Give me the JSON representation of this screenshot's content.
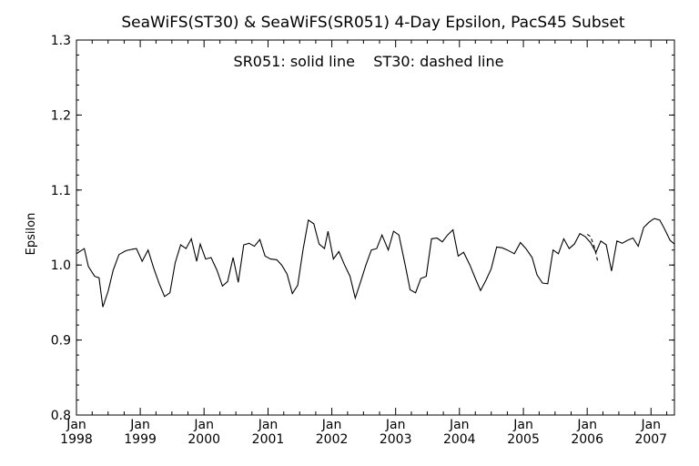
{
  "chart_data": {
    "type": "line",
    "title": "SeaWiFS(ST30) & SeaWiFS(SR051) 4-Day Epsilon, PacS45 Subset",
    "annotation": "SR051: solid line    ST30: dashed line",
    "ylabel": "Epsilon",
    "xlabel": "",
    "xlim": [
      "1998-01-01",
      "2007-05-15"
    ],
    "ylim": [
      0.8,
      1.3
    ],
    "y_ticks": [
      0.8,
      0.9,
      1.0,
      1.1,
      1.2,
      1.3
    ],
    "y_tick_labels": [
      "0.8",
      "0.9",
      "1.0",
      "1.1",
      "1.2",
      "1.3"
    ],
    "x_ticks": [
      {
        "date": "1998-01-01",
        "month": "Jan",
        "year": "1998"
      },
      {
        "date": "1999-01-01",
        "month": "Jan",
        "year": "1999"
      },
      {
        "date": "2000-01-01",
        "month": "Jan",
        "year": "2000"
      },
      {
        "date": "2001-01-01",
        "month": "Jan",
        "year": "2001"
      },
      {
        "date": "2002-01-01",
        "month": "Jan",
        "year": "2002"
      },
      {
        "date": "2003-01-01",
        "month": "Jan",
        "year": "2003"
      },
      {
        "date": "2004-01-01",
        "month": "Jan",
        "year": "2004"
      },
      {
        "date": "2005-01-01",
        "month": "Jan",
        "year": "2005"
      },
      {
        "date": "2006-01-01",
        "month": "Jan",
        "year": "2006"
      },
      {
        "date": "2007-01-01",
        "month": "Jan",
        "year": "2007"
      }
    ],
    "grid": false,
    "series": [
      {
        "name": "SR051",
        "style": "solid",
        "color": "#000000",
        "points": [
          [
            "1997-12-10",
            1.01
          ],
          [
            "1998-01-01",
            1.015
          ],
          [
            "1998-02-15",
            1.022
          ],
          [
            "1998-03-10",
            0.998
          ],
          [
            "1998-04-15",
            0.985
          ],
          [
            "1998-05-10",
            0.983
          ],
          [
            "1998-06-01",
            0.944
          ],
          [
            "1998-07-01",
            0.965
          ],
          [
            "1998-07-30",
            0.993
          ],
          [
            "1998-09-01",
            1.014
          ],
          [
            "1998-10-10",
            1.019
          ],
          [
            "1998-11-15",
            1.021
          ],
          [
            "1998-12-10",
            1.022
          ],
          [
            "1999-01-12",
            1.005
          ],
          [
            "1999-02-15",
            1.02
          ],
          [
            "1999-03-20",
            0.995
          ],
          [
            "1999-04-20",
            0.975
          ],
          [
            "1999-05-20",
            0.958
          ],
          [
            "1999-06-20",
            0.963
          ],
          [
            "1999-07-20",
            1.003
          ],
          [
            "1999-08-20",
            1.027
          ],
          [
            "1999-09-20",
            1.022
          ],
          [
            "1999-10-20",
            1.035
          ],
          [
            "1999-11-20",
            1.005
          ],
          [
            "1999-12-10",
            1.028
          ],
          [
            "2000-01-10",
            1.008
          ],
          [
            "2000-02-10",
            1.01
          ],
          [
            "2000-03-15",
            0.993
          ],
          [
            "2000-04-15",
            0.972
          ],
          [
            "2000-05-15",
            0.978
          ],
          [
            "2000-06-15",
            1.01
          ],
          [
            "2000-07-15",
            0.977
          ],
          [
            "2000-08-15",
            1.027
          ],
          [
            "2000-09-15",
            1.029
          ],
          [
            "2000-10-15",
            1.025
          ],
          [
            "2000-11-15",
            1.034
          ],
          [
            "2000-12-15",
            1.012
          ],
          [
            "2001-01-15",
            1.008
          ],
          [
            "2001-02-20",
            1.007
          ],
          [
            "2001-03-20",
            1.0
          ],
          [
            "2001-04-20",
            0.988
          ],
          [
            "2001-05-20",
            0.962
          ],
          [
            "2001-06-20",
            0.973
          ],
          [
            "2001-07-20",
            1.02
          ],
          [
            "2001-08-20",
            1.06
          ],
          [
            "2001-09-20",
            1.055
          ],
          [
            "2001-10-20",
            1.028
          ],
          [
            "2001-11-20",
            1.022
          ],
          [
            "2001-12-10",
            1.045
          ],
          [
            "2002-01-10",
            1.008
          ],
          [
            "2002-02-10",
            1.018
          ],
          [
            "2002-03-15",
            1.0
          ],
          [
            "2002-04-15",
            0.985
          ],
          [
            "2002-05-15",
            0.956
          ],
          [
            "2002-06-15",
            0.978
          ],
          [
            "2002-07-15",
            1.0
          ],
          [
            "2002-08-15",
            1.02
          ],
          [
            "2002-09-15",
            1.022
          ],
          [
            "2002-10-15",
            1.04
          ],
          [
            "2002-11-20",
            1.02
          ],
          [
            "2002-12-20",
            1.045
          ],
          [
            "2003-01-20",
            1.04
          ],
          [
            "2003-02-25",
            1.0
          ],
          [
            "2003-03-25",
            0.967
          ],
          [
            "2003-04-25",
            0.963
          ],
          [
            "2003-05-25",
            0.982
          ],
          [
            "2003-06-25",
            0.985
          ],
          [
            "2003-07-25",
            1.035
          ],
          [
            "2003-08-25",
            1.036
          ],
          [
            "2003-09-25",
            1.031
          ],
          [
            "2003-10-25",
            1.04
          ],
          [
            "2003-11-25",
            1.047
          ],
          [
            "2003-12-25",
            1.012
          ],
          [
            "2004-01-25",
            1.017
          ],
          [
            "2004-03-01",
            1.0
          ],
          [
            "2004-04-01",
            0.982
          ],
          [
            "2004-05-01",
            0.966
          ],
          [
            "2004-06-01",
            0.98
          ],
          [
            "2004-07-01",
            0.995
          ],
          [
            "2004-08-01",
            1.024
          ],
          [
            "2004-09-01",
            1.023
          ],
          [
            "2004-10-01",
            1.02
          ],
          [
            "2004-11-10",
            1.015
          ],
          [
            "2004-12-15",
            1.03
          ],
          [
            "2005-01-15",
            1.022
          ],
          [
            "2005-02-20",
            1.01
          ],
          [
            "2005-03-20",
            0.987
          ],
          [
            "2005-04-20",
            0.976
          ],
          [
            "2005-05-20",
            0.975
          ],
          [
            "2005-06-20",
            1.02
          ],
          [
            "2005-07-20",
            1.015
          ],
          [
            "2005-08-20",
            1.035
          ],
          [
            "2005-09-20",
            1.022
          ],
          [
            "2005-10-20",
            1.028
          ],
          [
            "2005-11-20",
            1.042
          ],
          [
            "2005-12-20",
            1.038
          ],
          [
            "2006-01-20",
            1.03
          ],
          [
            "2006-02-20",
            1.017
          ],
          [
            "2006-03-20",
            1.032
          ],
          [
            "2006-04-20",
            1.027
          ],
          [
            "2006-05-20",
            0.992
          ],
          [
            "2006-06-20",
            1.032
          ],
          [
            "2006-07-20",
            1.029
          ],
          [
            "2006-08-20",
            1.033
          ],
          [
            "2006-09-20",
            1.036
          ],
          [
            "2006-10-20",
            1.025
          ],
          [
            "2006-11-20",
            1.05
          ],
          [
            "2006-12-20",
            1.057
          ],
          [
            "2007-01-20",
            1.062
          ],
          [
            "2007-02-20",
            1.06
          ],
          [
            "2007-03-20",
            1.048
          ],
          [
            "2007-04-20",
            1.033
          ],
          [
            "2007-05-15",
            1.028
          ]
        ]
      },
      {
        "name": "ST30",
        "style": "dashed",
        "color": "#000000",
        "points": [
          [
            "2006-01-01",
            1.041
          ],
          [
            "2006-01-20",
            1.038
          ],
          [
            "2006-02-10",
            1.025
          ],
          [
            "2006-02-20",
            1.015
          ],
          [
            "2006-03-01",
            1.006
          ]
        ]
      }
    ]
  }
}
